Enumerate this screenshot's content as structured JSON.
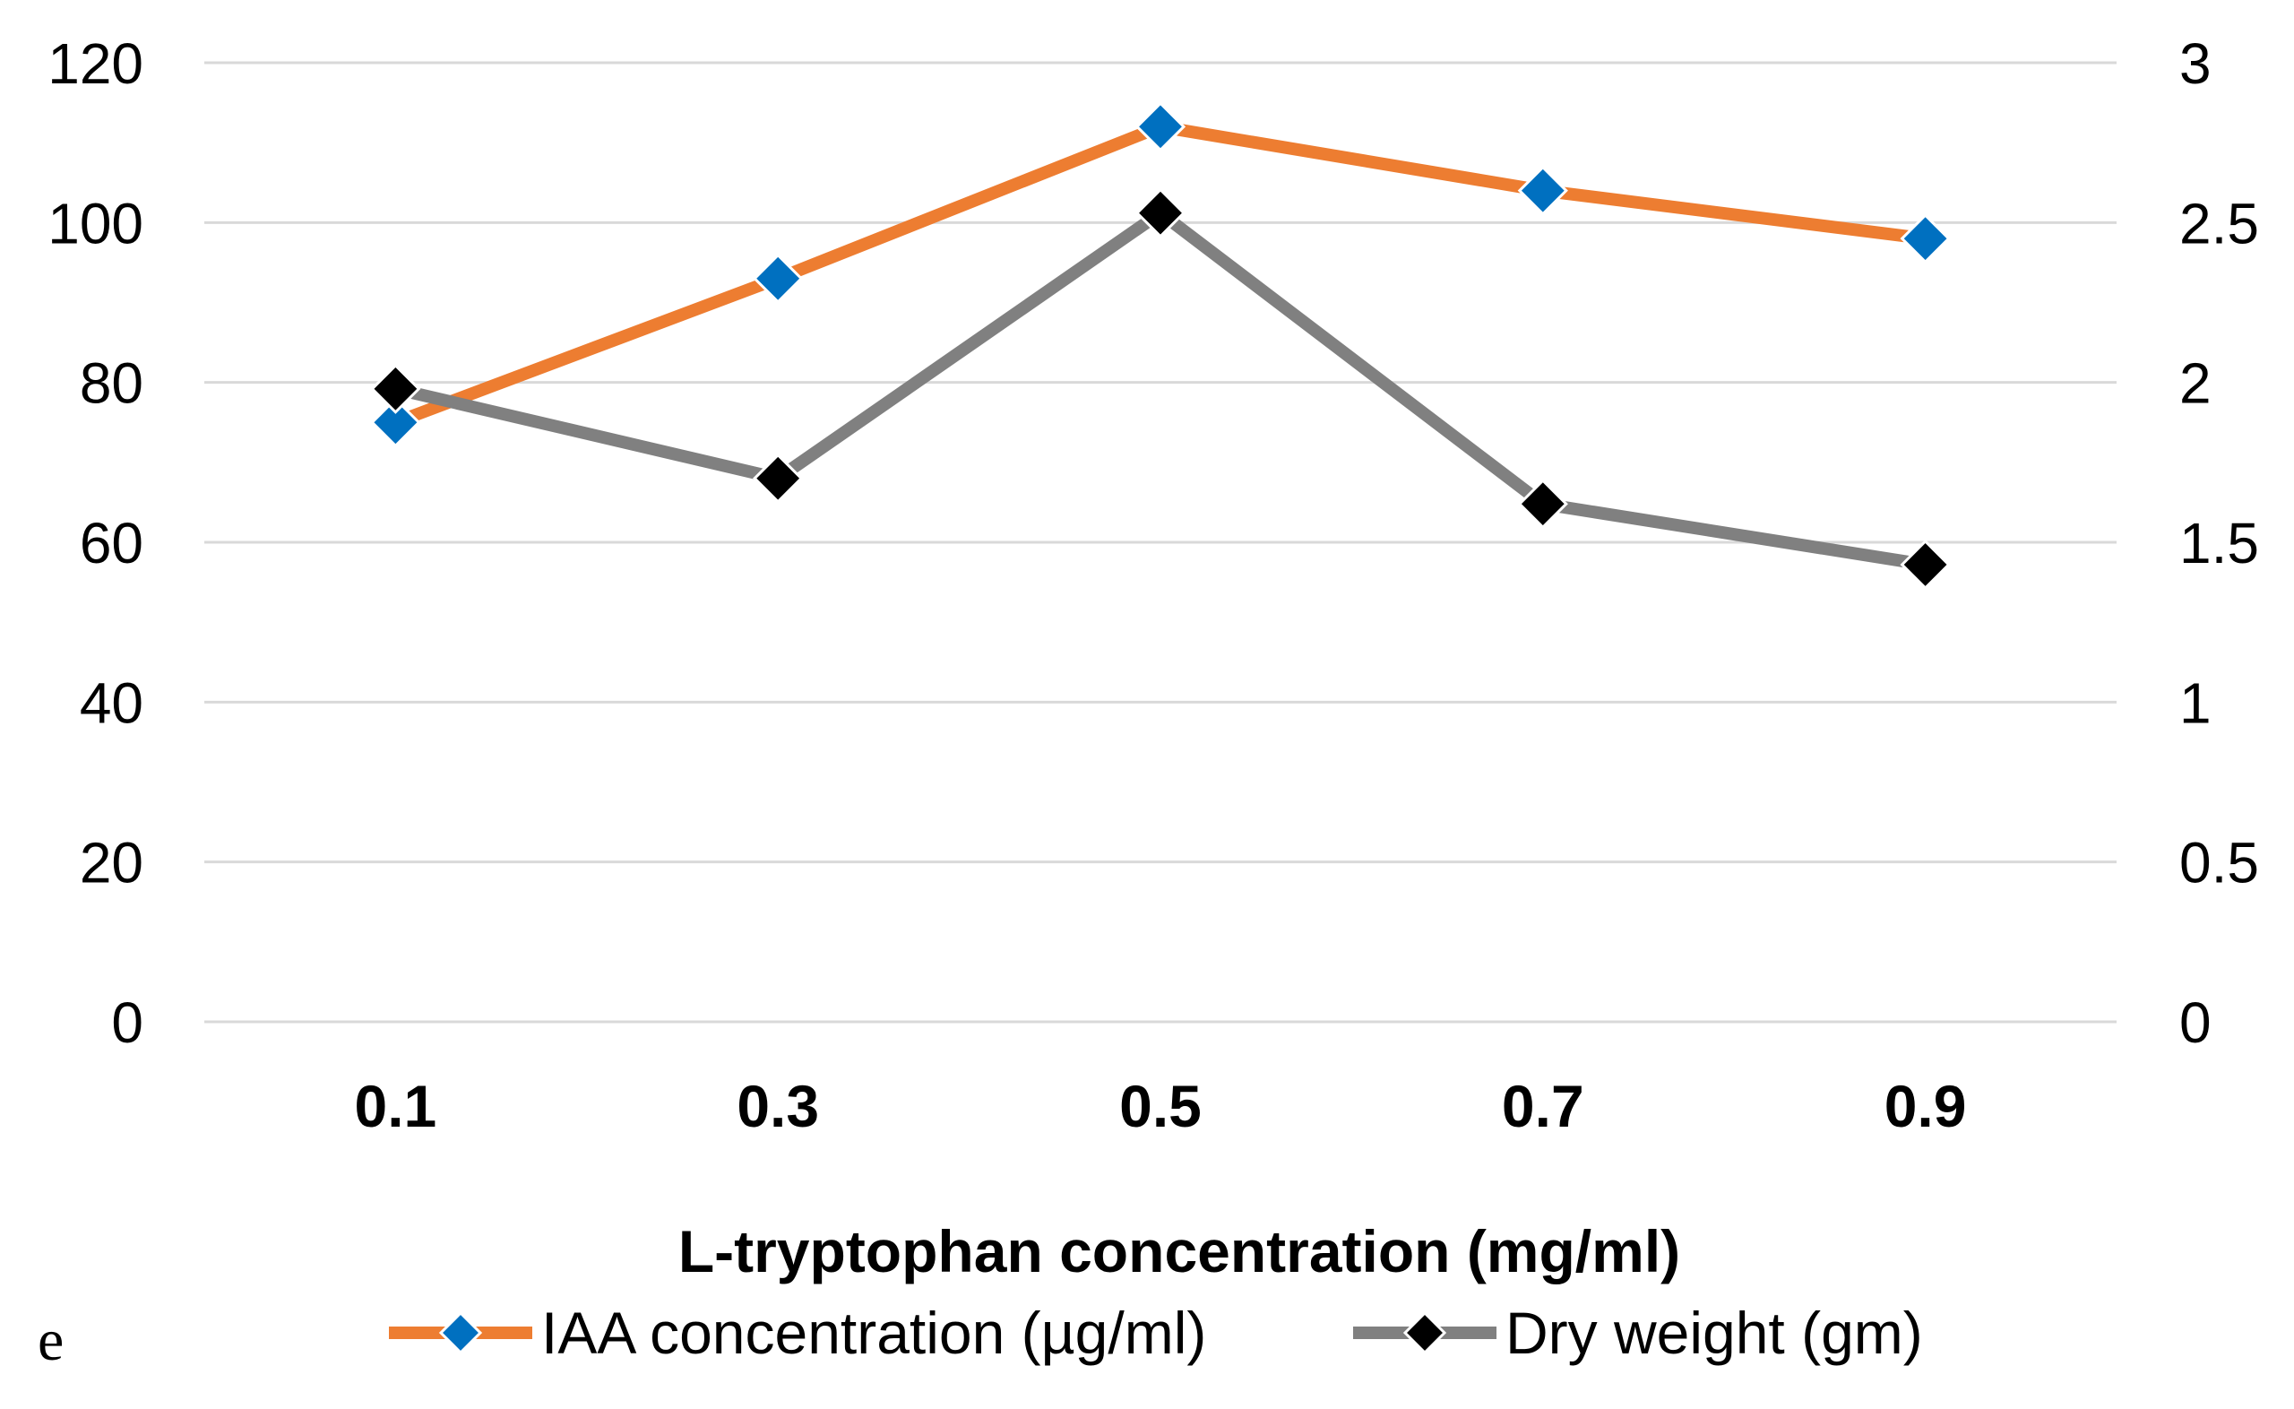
{
  "panel_label": "e",
  "chart_data": {
    "type": "line",
    "title": "",
    "xlabel": "L-tryptophan concentration (mg/ml)",
    "categories": [
      "0.1",
      "0.3",
      "0.5",
      "0.7",
      "0.9"
    ],
    "y_left": {
      "ylim": [
        0,
        120
      ],
      "ticks": [
        "0",
        "20",
        "40",
        "60",
        "80",
        "100",
        "120"
      ]
    },
    "y_right": {
      "ylim": [
        0,
        3
      ],
      "ticks": [
        "0",
        "0.5",
        "1",
        "1.5",
        "2",
        "2.5",
        "3"
      ]
    },
    "grid": true,
    "legend_position": "bottom",
    "series": [
      {
        "name": "IAA concentration (µg/ml)",
        "axis": "left",
        "values": [
          75,
          93,
          112,
          104,
          98
        ],
        "line_color": "#ED7D31",
        "marker": "diamond",
        "marker_color": "#0070C0"
      },
      {
        "name": "Dry weight (gm)",
        "axis": "right",
        "values": [
          1.98,
          1.7,
          2.53,
          1.62,
          1.43
        ],
        "line_color": "#808080",
        "marker": "diamond",
        "marker_color": "#000000"
      }
    ]
  }
}
